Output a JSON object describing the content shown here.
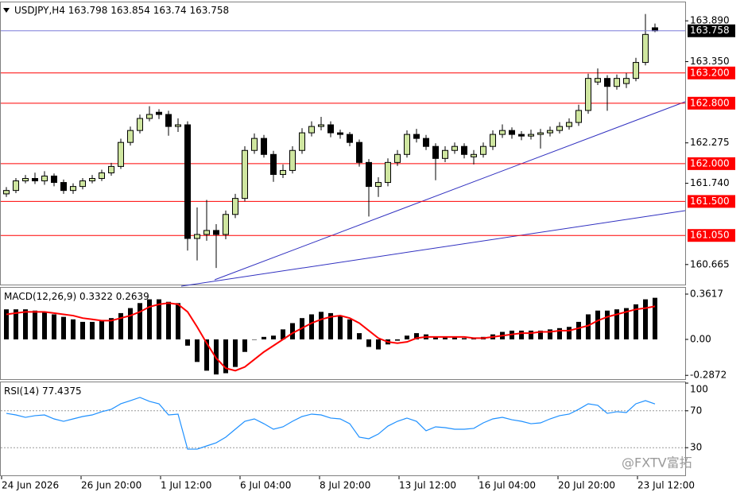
{
  "chart_data": [
    {
      "type": "candlestick",
      "symbol": "USDJPY,H4",
      "candles": [
        [
          161.6,
          161.69,
          161.56,
          161.645
        ],
        [
          161.645,
          161.81,
          161.61,
          161.772
        ],
        [
          161.772,
          161.85,
          161.74,
          161.804
        ],
        [
          161.804,
          161.88,
          161.73,
          161.772
        ],
        [
          161.772,
          161.9,
          161.72,
          161.836
        ],
        [
          161.836,
          161.87,
          161.7,
          161.751
        ],
        [
          161.751,
          161.79,
          161.6,
          161.645
        ],
        [
          161.645,
          161.74,
          161.6,
          161.698
        ],
        [
          161.698,
          161.81,
          161.66,
          161.772
        ],
        [
          161.772,
          161.85,
          161.74,
          161.804
        ],
        [
          161.804,
          161.92,
          161.77,
          161.878
        ],
        [
          161.878,
          162.01,
          161.84,
          161.963
        ],
        [
          161.963,
          162.33,
          161.93,
          162.281
        ],
        [
          162.281,
          162.49,
          162.24,
          162.439
        ],
        [
          162.439,
          162.65,
          162.4,
          162.598
        ],
        [
          162.598,
          162.76,
          162.56,
          162.651
        ],
        [
          162.68,
          162.72,
          162.59,
          162.651
        ],
        [
          162.651,
          162.7,
          162.37,
          162.492
        ],
        [
          162.492,
          162.6,
          162.42,
          162.514
        ],
        [
          162.514,
          162.56,
          160.85,
          161.01
        ],
        [
          161.01,
          161.42,
          160.72,
          161.063
        ],
        [
          161.063,
          161.52,
          160.98,
          161.116
        ],
        [
          161.116,
          161.2,
          160.62,
          161.063
        ],
        [
          161.063,
          161.38,
          161.0,
          161.328
        ],
        [
          161.328,
          161.6,
          161.28,
          161.54
        ],
        [
          161.54,
          162.23,
          161.5,
          162.175
        ],
        [
          162.175,
          162.4,
          162.13,
          162.334
        ],
        [
          162.334,
          162.38,
          162.08,
          162.122
        ],
        [
          162.122,
          162.17,
          161.76,
          161.857
        ],
        [
          161.857,
          161.99,
          161.81,
          161.91
        ],
        [
          161.91,
          162.23,
          161.87,
          162.175
        ],
        [
          162.175,
          162.47,
          162.13,
          162.408
        ],
        [
          162.408,
          162.56,
          162.36,
          162.492
        ],
        [
          162.492,
          162.62,
          162.44,
          162.514
        ],
        [
          162.514,
          162.56,
          162.35,
          162.408
        ],
        [
          162.408,
          162.45,
          162.33,
          162.387
        ],
        [
          162.387,
          162.42,
          162.23,
          162.281
        ],
        [
          162.281,
          162.32,
          161.96,
          162.016
        ],
        [
          162.016,
          162.06,
          161.3,
          161.698
        ],
        [
          161.698,
          161.82,
          161.56,
          161.751
        ],
        [
          161.751,
          162.07,
          161.7,
          162.016
        ],
        [
          162.016,
          162.18,
          161.97,
          162.122
        ],
        [
          162.122,
          162.44,
          162.08,
          162.387
        ],
        [
          162.387,
          162.46,
          162.28,
          162.334
        ],
        [
          162.334,
          162.38,
          162.18,
          162.228
        ],
        [
          162.228,
          162.27,
          161.78,
          162.069
        ],
        [
          162.069,
          162.23,
          162.02,
          162.175
        ],
        [
          162.175,
          162.28,
          162.13,
          162.228
        ],
        [
          162.228,
          162.27,
          162.07,
          162.122
        ],
        [
          162.09,
          162.18,
          161.99,
          162.122
        ],
        [
          162.122,
          162.28,
          162.08,
          162.228
        ],
        [
          162.228,
          162.44,
          162.18,
          162.387
        ],
        [
          162.387,
          162.52,
          162.34,
          162.439
        ],
        [
          162.439,
          162.48,
          162.33,
          162.387
        ],
        [
          162.387,
          162.43,
          162.31,
          162.365
        ],
        [
          162.365,
          162.45,
          162.32,
          162.387
        ],
        [
          162.387,
          162.46,
          162.2,
          162.408
        ],
        [
          162.408,
          162.49,
          162.36,
          162.439
        ],
        [
          162.439,
          162.55,
          162.4,
          162.492
        ],
        [
          162.492,
          162.6,
          162.45,
          162.545
        ],
        [
          162.545,
          162.78,
          162.5,
          162.704
        ],
        [
          162.704,
          163.19,
          162.66,
          163.128
        ],
        [
          163.08,
          163.26,
          163.04,
          163.128
        ],
        [
          163.128,
          163.17,
          162.7,
          163.022
        ],
        [
          163.022,
          163.18,
          162.98,
          163.128
        ],
        [
          163.06,
          163.2,
          163.0,
          163.128
        ],
        [
          163.128,
          163.4,
          163.09,
          163.339
        ],
        [
          163.339,
          163.98,
          163.3,
          163.71
        ],
        [
          163.798,
          163.854,
          163.74,
          163.758
        ]
      ],
      "up_color": "#cfe6a0",
      "down_color": "#000000",
      "ylim": [
        160.4,
        164.134
      ],
      "yticks": [
        {
          "value": 163.89,
          "label": "163.890"
        },
        {
          "value": 163.35,
          "label": "163.350"
        },
        162.275,
        {
          "value": 161.74,
          "label": "161.740"
        },
        160.665
      ],
      "levels": [
        {
          "value": 163.2,
          "label": "163.200"
        },
        {
          "value": 162.8,
          "label": "162.800"
        },
        {
          "value": 162,
          "label": "162.000"
        },
        {
          "value": 161.5,
          "label": "161.500"
        },
        {
          "value": 161.05,
          "label": "161.050"
        }
      ],
      "level_color": "#ff0000",
      "price_line_color": "#7b7bd8",
      "x_tick_labels": [
        "24 Jun 2026",
        "26 Jun 20:00",
        "1 Jul 12:00",
        "6 Jul 04:00",
        "8 Jul 20:00",
        "13 Jul 12:00",
        "16 Jul 04:00",
        "20 Jul 20:00",
        "23 Jul 12:00"
      ]
    },
    {
      "type": "macd",
      "title": "MACD(12,26,9)",
      "histogram": [
        0.24,
        0.24,
        0.24,
        0.23,
        0.22,
        0.2,
        0.18,
        0.16,
        0.14,
        0.14,
        0.15,
        0.17,
        0.21,
        0.25,
        0.29,
        0.32,
        0.32,
        0.3,
        0.29,
        -0.05,
        -0.18,
        -0.25,
        -0.28,
        -0.27,
        -0.22,
        -0.1,
        0.0,
        0.02,
        0.03,
        0.08,
        0.13,
        0.17,
        0.2,
        0.22,
        0.21,
        0.19,
        0.16,
        0.05,
        -0.06,
        -0.08,
        -0.04,
        -0.01,
        0.03,
        0.05,
        0.04,
        0.02,
        0.02,
        0.02,
        0.01,
        0.01,
        0.02,
        0.04,
        0.06,
        0.07,
        0.07,
        0.07,
        0.07,
        0.08,
        0.09,
        0.1,
        0.14,
        0.2,
        0.23,
        0.23,
        0.24,
        0.25,
        0.28,
        0.32,
        0.3322
      ],
      "signal": [
        0.2,
        0.21,
        0.22,
        0.22,
        0.22,
        0.21,
        0.2,
        0.19,
        0.17,
        0.16,
        0.15,
        0.15,
        0.17,
        0.19,
        0.22,
        0.26,
        0.28,
        0.29,
        0.28,
        0.22,
        0.1,
        -0.03,
        -0.15,
        -0.23,
        -0.25,
        -0.22,
        -0.16,
        -0.1,
        -0.05,
        0.0,
        0.05,
        0.09,
        0.13,
        0.16,
        0.18,
        0.19,
        0.17,
        0.13,
        0.07,
        0.01,
        -0.02,
        -0.03,
        -0.02,
        0.01,
        0.02,
        0.02,
        0.02,
        0.02,
        0.02,
        0.01,
        0.01,
        0.02,
        0.03,
        0.04,
        0.05,
        0.05,
        0.06,
        0.06,
        0.07,
        0.07,
        0.09,
        0.11,
        0.15,
        0.18,
        0.2,
        0.22,
        0.24,
        0.25,
        0.2639
      ],
      "hist_color": "#000000",
      "signal_color": "#ff0000",
      "ylim": [
        -0.3175,
        0.4125
      ],
      "yticks": [
        0.3617,
        {
          "value": 0,
          "label": "0.00"
        },
        -0.2872
      ]
    },
    {
      "type": "rsi",
      "title": "RSI(14)",
      "values": [
        67.2,
        65.5,
        62.9,
        64.7,
        65.5,
        61.2,
        58.6,
        61.2,
        63.8,
        65.5,
        69.0,
        71.6,
        77.6,
        81.0,
        84.5,
        80.2,
        77.6,
        65.5,
        66.4,
        28.4,
        28.4,
        31.9,
        35.3,
        41.4,
        50.0,
        58.6,
        61.2,
        56.0,
        50.0,
        52.6,
        58.6,
        63.8,
        66.4,
        65.5,
        62.1,
        61.2,
        56.0,
        41.4,
        39.7,
        44.8,
        53.4,
        58.6,
        62.1,
        58.6,
        48.3,
        52.6,
        51.7,
        50.0,
        50.0,
        50.9,
        56.9,
        61.2,
        62.9,
        60.3,
        58.6,
        56.0,
        56.9,
        61.2,
        64.7,
        66.4,
        71.6,
        77.6,
        75.9,
        67.2,
        69.0,
        68.1,
        77.6,
        81.0,
        77.4375
      ],
      "color": "#1e90ff",
      "ylim": [
        0,
        100
      ],
      "yticks": [
        100,
        70,
        30
      ]
    }
  ],
  "watermark": "@FXTV富拓"
}
